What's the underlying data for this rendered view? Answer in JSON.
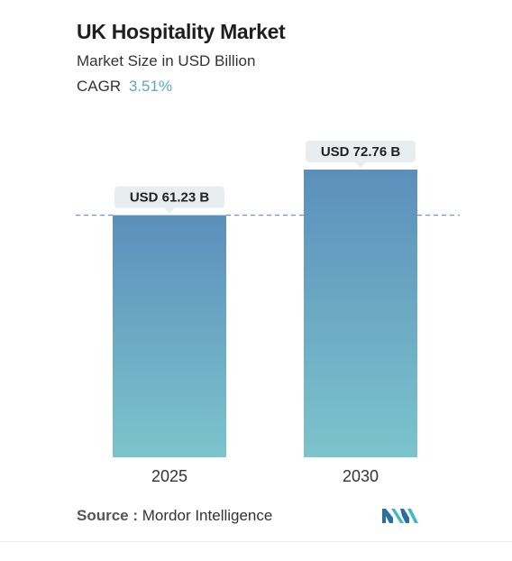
{
  "header": {
    "title": "UK Hospitality Market",
    "subtitle": "Market Size in USD Billion",
    "cagr_label": "CAGR",
    "cagr_value": "3.51%"
  },
  "chart_data": {
    "type": "bar",
    "categories": [
      "2025",
      "2030"
    ],
    "values": [
      61.23,
      72.76
    ],
    "value_labels": [
      "USD 61.23 B",
      "USD 72.76 B"
    ],
    "title": "UK Hospitality Market",
    "subtitle": "Market Size in USD Billion",
    "colors": {
      "bar_top": "#5b8fbb",
      "bar_bottom": "#7cc4cc",
      "reference_line": "#7b9bbd",
      "label_bg": "#e8eef0"
    }
  },
  "footer": {
    "source_label": "Source :",
    "source_value": "Mordor Intelligence",
    "logo_icon": "mordor-intelligence-logo-icon"
  }
}
